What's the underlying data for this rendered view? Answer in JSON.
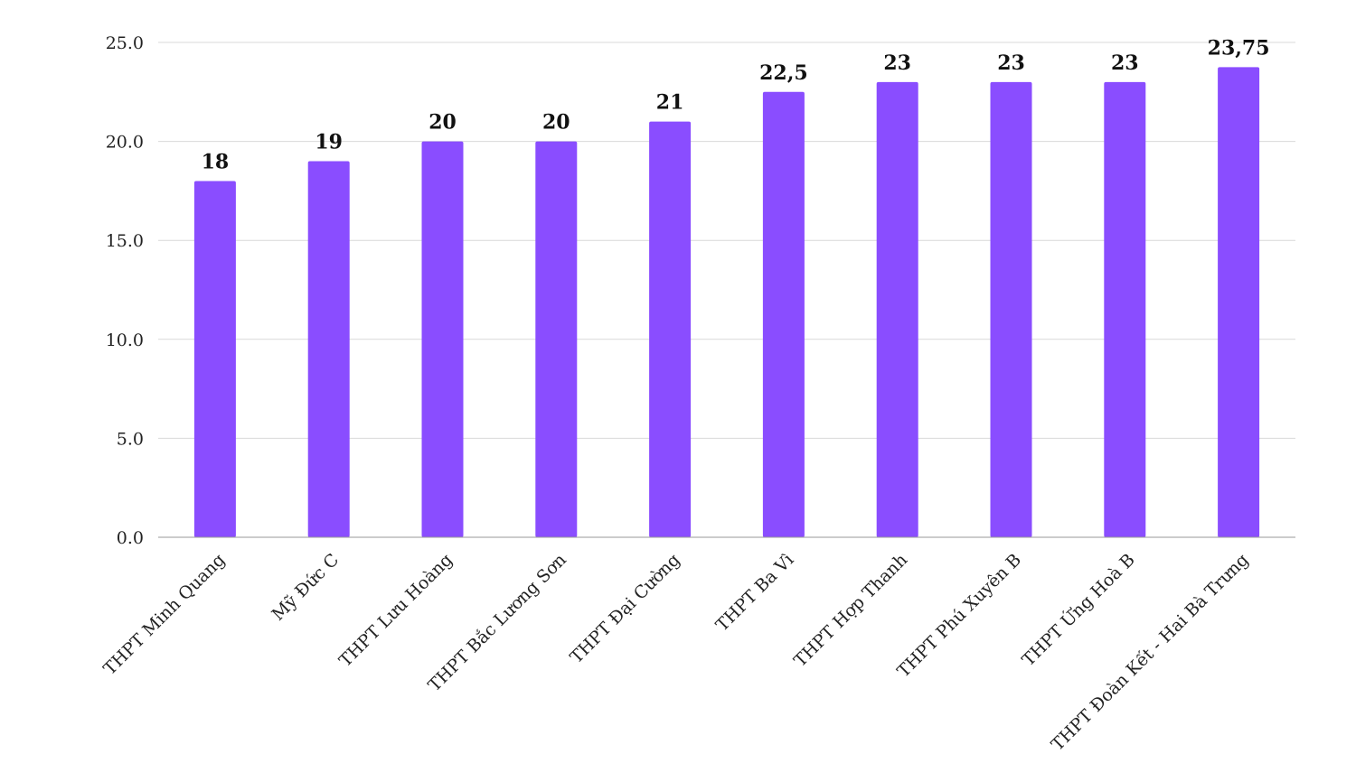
{
  "chart_data": {
    "type": "bar",
    "categories": [
      "THPT Minh Quang",
      "Mỹ Đức C",
      "THPT Lưu Hoàng",
      "THPT Bắc Lương Sơn",
      "THPT Đại Cường",
      "THPT Ba Vì",
      "THPT Hợp Thanh",
      "THPT Phú Xuyên B",
      "THPT Ứng Hoà B",
      "THPT Đoàn Kết - Hai Bà Trưng"
    ],
    "values": [
      18,
      19,
      20,
      20,
      21,
      22.5,
      23,
      23,
      23,
      23.75
    ],
    "data_labels": [
      "18",
      "19",
      "20",
      "20",
      "21",
      "22,5",
      "23",
      "23",
      "23",
      "23,75"
    ],
    "y_ticks": [
      "0.0",
      "5.0",
      "10.0",
      "15.0",
      "20.0",
      "25.0"
    ],
    "ylim": [
      0,
      25
    ],
    "grid": true,
    "legend": "none",
    "title": "",
    "xlabel": "",
    "ylabel": "",
    "colors": {
      "bar": "#8a4dff",
      "grid": "#d9d9d9",
      "axis": "#999999"
    }
  }
}
